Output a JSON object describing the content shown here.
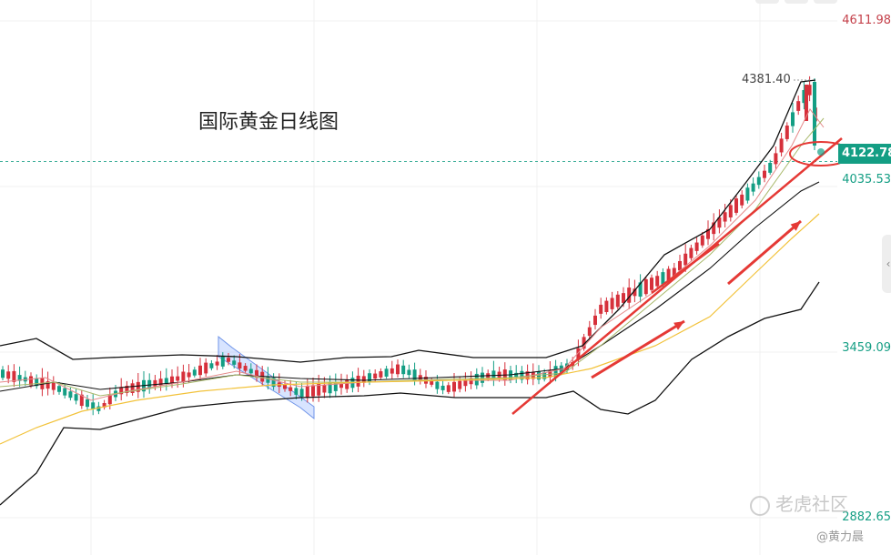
{
  "title": "国际黄金日线图",
  "price_axis": {
    "labels": [
      {
        "value": 4611.98,
        "text": "4611.98",
        "color": "#c4404a"
      },
      {
        "value": 4035.53,
        "text": "4035.53",
        "color": "#149e84"
      },
      {
        "value": 3459.09,
        "text": "3459.09",
        "color": "#149e84"
      },
      {
        "value": 2882.65,
        "text": "2882.65",
        "color": "#149e84"
      }
    ]
  },
  "current_price": {
    "value": 4122.78,
    "text": "4122.78",
    "color": "#149e84"
  },
  "high_marker": {
    "value": 4381.4,
    "text": "4381.40"
  },
  "watermark": "老虎社区",
  "author": "@黄力晨",
  "colors": {
    "up": "#d6303b",
    "down": "#149e84",
    "bollinger": "#111111",
    "ma_short": "#e58a8a",
    "ma_mid": "#a8b86a",
    "ma_long": "#f2c23a",
    "annotation": "#e53935",
    "channel_fill": "#7fa7ff"
  },
  "chart_data": {
    "type": "candlestick",
    "title": "国际黄金日线图",
    "ylim": [
      2882.65,
      4611.98
    ],
    "y_ticks": [
      4611.98,
      4035.53,
      3459.09,
      2882.65
    ],
    "grid": true,
    "current_price": 4122.78,
    "marked_high": 4381.4
  }
}
